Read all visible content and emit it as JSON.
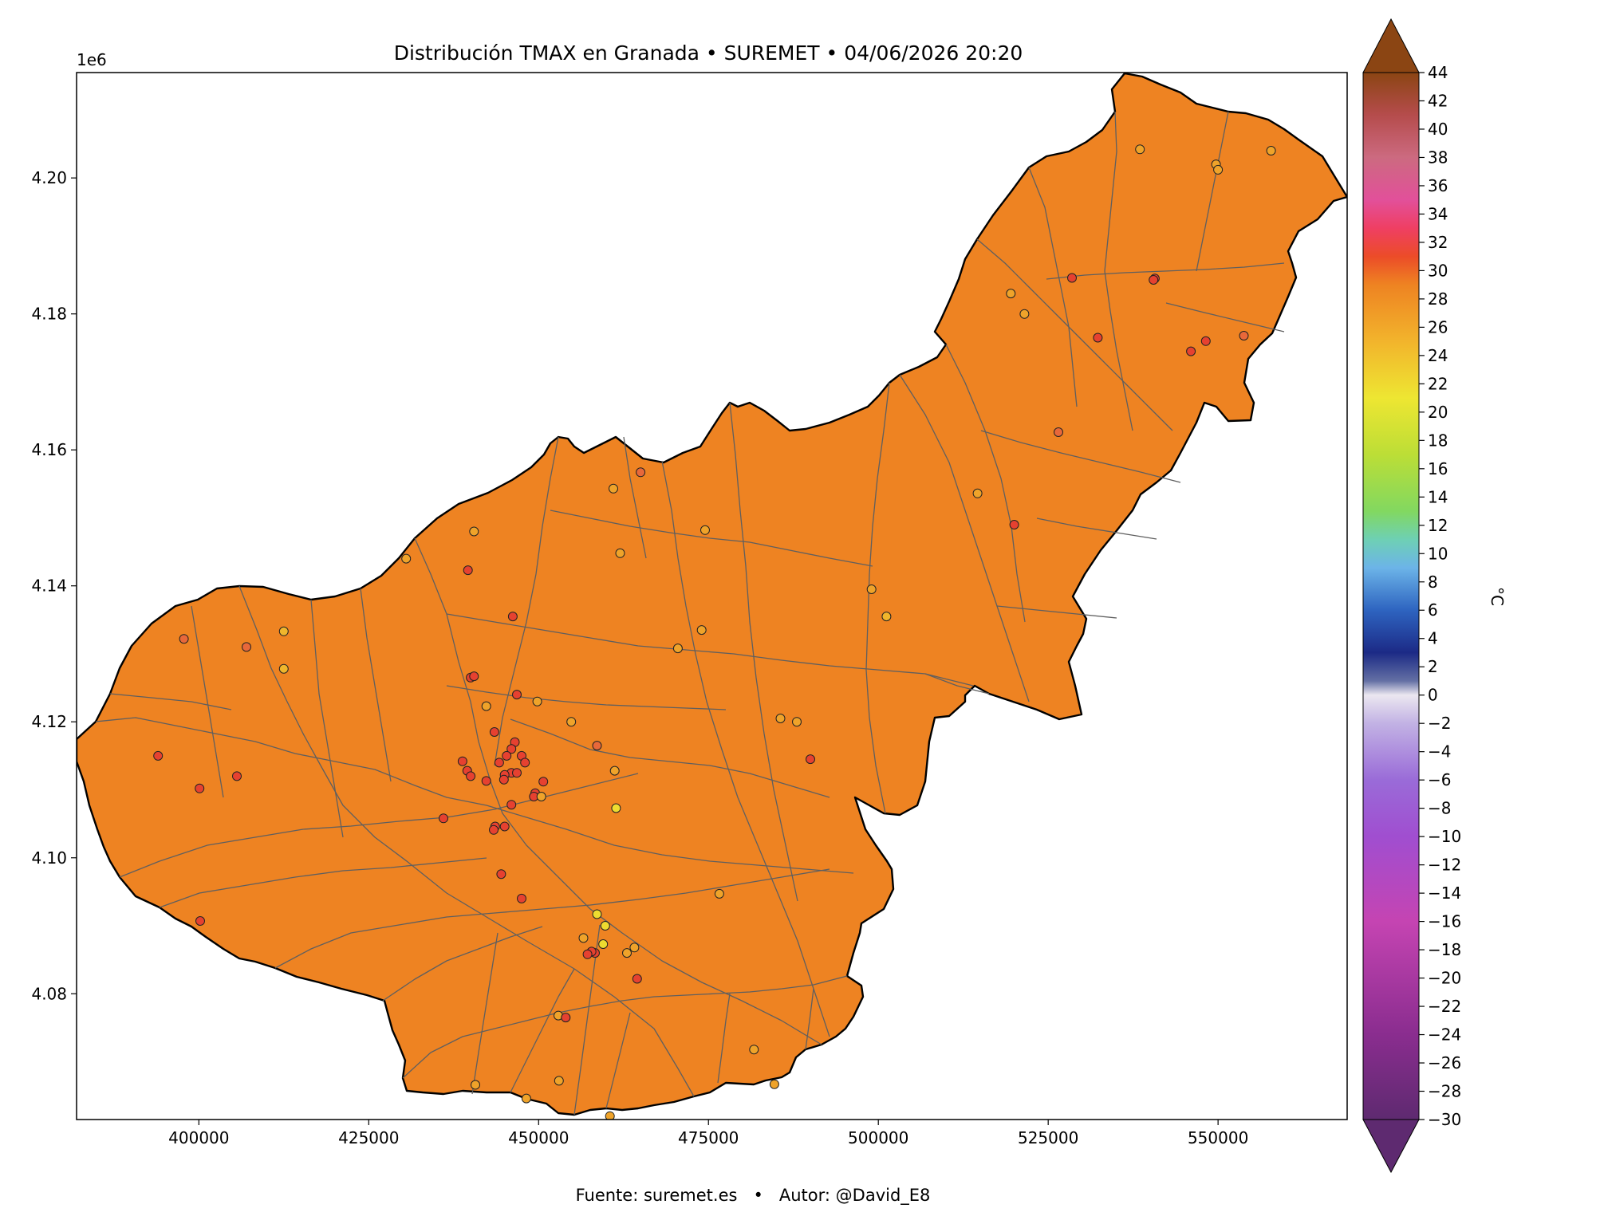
{
  "title": "Distribución TMAX en Granada • SUREMET • 04/06/2026 20:20",
  "footer": "Fuente: suremet.es   •   Autor: @David_E8",
  "chart_data": {
    "type": "map",
    "xlim": [
      382000,
      569000
    ],
    "ylim": [
      4061500,
      4215500
    ],
    "y_exponent_label": "1e6",
    "x_ticks": [
      {
        "value": 400000,
        "label": "400000"
      },
      {
        "value": 425000,
        "label": "425000"
      },
      {
        "value": 450000,
        "label": "450000"
      },
      {
        "value": 475000,
        "label": "475000"
      },
      {
        "value": 500000,
        "label": "500000"
      },
      {
        "value": 525000,
        "label": "525000"
      },
      {
        "value": 550000,
        "label": "550000"
      }
    ],
    "y_ticks": [
      {
        "value": 4080000,
        "label": "4.08"
      },
      {
        "value": 4100000,
        "label": "4.10"
      },
      {
        "value": 4120000,
        "label": "4.12"
      },
      {
        "value": 4140000,
        "label": "4.14"
      },
      {
        "value": 4160000,
        "label": "4.16"
      },
      {
        "value": 4180000,
        "label": "4.18"
      },
      {
        "value": 4200000,
        "label": "4.20"
      }
    ],
    "fill_color": "#ee8322",
    "colorbar": {
      "label": "°C",
      "min": -30,
      "max": 44,
      "step": 2,
      "extend": "both",
      "tick_labels": [
        "44",
        "42",
        "40",
        "38",
        "36",
        "34",
        "32",
        "30",
        "28",
        "26",
        "24",
        "22",
        "20",
        "18",
        "16",
        "14",
        "12",
        "10",
        "8",
        "6",
        "4",
        "2",
        "0",
        "−2",
        "−4",
        "−6",
        "−8",
        "−10",
        "−12",
        "−14",
        "−16",
        "−18",
        "−20",
        "−22",
        "−24",
        "−26",
        "−28",
        "−30"
      ],
      "stops": [
        {
          "t": -30,
          "c": "#5e2a70"
        },
        {
          "t": -24,
          "c": "#8a2d8f"
        },
        {
          "t": -16,
          "c": "#c544b2"
        },
        {
          "t": -10,
          "c": "#a04ed0"
        },
        {
          "t": -6,
          "c": "#9a6bd8"
        },
        {
          "t": -2,
          "c": "#c2b2e4"
        },
        {
          "t": 0,
          "c": "#ebe7f0"
        },
        {
          "t": 1,
          "c": "#6470a4"
        },
        {
          "t": 3,
          "c": "#1c2a86"
        },
        {
          "t": 6,
          "c": "#2e64c0"
        },
        {
          "t": 9,
          "c": "#6cb4e8"
        },
        {
          "t": 11,
          "c": "#6ed0b4"
        },
        {
          "t": 13,
          "c": "#82d860"
        },
        {
          "t": 17,
          "c": "#bcde36"
        },
        {
          "t": 21,
          "c": "#eee632"
        },
        {
          "t": 25,
          "c": "#f2b42c"
        },
        {
          "t": 29,
          "c": "#ee8322"
        },
        {
          "t": 31,
          "c": "#ec4c28"
        },
        {
          "t": 33,
          "c": "#ef3f63"
        },
        {
          "t": 35,
          "c": "#e2509a"
        },
        {
          "t": 38,
          "c": "#cc6a80"
        },
        {
          "t": 41,
          "c": "#b54c4c"
        },
        {
          "t": 44,
          "c": "#8b4513"
        }
      ],
      "under_color": "#5e2a70",
      "over_color": "#8b4513"
    },
    "stations": [
      {
        "x": 538500,
        "y": 4204200,
        "c": "#efa32a"
      },
      {
        "x": 549700,
        "y": 4202000,
        "c": "#efa32a"
      },
      {
        "x": 550000,
        "y": 4201200,
        "c": "#efa32a"
      },
      {
        "x": 557800,
        "y": 4204000,
        "c": "#efa32a"
      },
      {
        "x": 519500,
        "y": 4183000,
        "c": "#efa32a"
      },
      {
        "x": 521500,
        "y": 4180000,
        "c": "#efa32a"
      },
      {
        "x": 528500,
        "y": 4185300,
        "c": "#e64130"
      },
      {
        "x": 540700,
        "y": 4185200,
        "c": "#e64130"
      },
      {
        "x": 540500,
        "y": 4185000,
        "c": "#e64130"
      },
      {
        "x": 532300,
        "y": 4176500,
        "c": "#e64130"
      },
      {
        "x": 548200,
        "y": 4176000,
        "c": "#e64130"
      },
      {
        "x": 553800,
        "y": 4176800,
        "c": "#e8683a"
      },
      {
        "x": 546000,
        "y": 4174500,
        "c": "#e64130"
      },
      {
        "x": 526500,
        "y": 4162600,
        "c": "#e8683a"
      },
      {
        "x": 514600,
        "y": 4153600,
        "c": "#efa32a"
      },
      {
        "x": 520000,
        "y": 4149000,
        "c": "#e64130"
      },
      {
        "x": 499000,
        "y": 4139500,
        "c": "#efa32a"
      },
      {
        "x": 501200,
        "y": 4135500,
        "c": "#f0b62c"
      },
      {
        "x": 461000,
        "y": 4154300,
        "c": "#efa32a"
      },
      {
        "x": 465000,
        "y": 4156700,
        "c": "#e8683a"
      },
      {
        "x": 440500,
        "y": 4148000,
        "c": "#efa32a"
      },
      {
        "x": 474500,
        "y": 4148200,
        "c": "#efa32a"
      },
      {
        "x": 462000,
        "y": 4144800,
        "c": "#efa32a"
      },
      {
        "x": 430500,
        "y": 4144000,
        "c": "#efa32a"
      },
      {
        "x": 439600,
        "y": 4142300,
        "c": "#e64130"
      },
      {
        "x": 446200,
        "y": 4135500,
        "c": "#e64130"
      },
      {
        "x": 474000,
        "y": 4133500,
        "c": "#efa32a"
      },
      {
        "x": 470500,
        "y": 4130800,
        "c": "#efa32a"
      },
      {
        "x": 412500,
        "y": 4133300,
        "c": "#f0b62c"
      },
      {
        "x": 397800,
        "y": 4132200,
        "c": "#e8683a"
      },
      {
        "x": 407000,
        "y": 4131000,
        "c": "#e8683a"
      },
      {
        "x": 412500,
        "y": 4127800,
        "c": "#f0b62c"
      },
      {
        "x": 440000,
        "y": 4126500,
        "c": "#e64130"
      },
      {
        "x": 440500,
        "y": 4126700,
        "c": "#e64130"
      },
      {
        "x": 446800,
        "y": 4124000,
        "c": "#e64130"
      },
      {
        "x": 449800,
        "y": 4123000,
        "c": "#efa32a"
      },
      {
        "x": 442300,
        "y": 4122300,
        "c": "#efa32a"
      },
      {
        "x": 485600,
        "y": 4120500,
        "c": "#efa32a"
      },
      {
        "x": 488000,
        "y": 4120000,
        "c": "#efa32a"
      },
      {
        "x": 454800,
        "y": 4120000,
        "c": "#efa32a"
      },
      {
        "x": 443500,
        "y": 4118500,
        "c": "#e64130"
      },
      {
        "x": 458600,
        "y": 4116500,
        "c": "#e8683a"
      },
      {
        "x": 446500,
        "y": 4117000,
        "c": "#e64130"
      },
      {
        "x": 446000,
        "y": 4116000,
        "c": "#e64130"
      },
      {
        "x": 445300,
        "y": 4115000,
        "c": "#e64130"
      },
      {
        "x": 447500,
        "y": 4115000,
        "c": "#e64130"
      },
      {
        "x": 448000,
        "y": 4114000,
        "c": "#e64130"
      },
      {
        "x": 444200,
        "y": 4114000,
        "c": "#e64130"
      },
      {
        "x": 438800,
        "y": 4114200,
        "c": "#e64130"
      },
      {
        "x": 490000,
        "y": 4114500,
        "c": "#e64130"
      },
      {
        "x": 394000,
        "y": 4115000,
        "c": "#e64130"
      },
      {
        "x": 439500,
        "y": 4112800,
        "c": "#e64130"
      },
      {
        "x": 446000,
        "y": 4112500,
        "c": "#e64130"
      },
      {
        "x": 445000,
        "y": 4112200,
        "c": "#e64130"
      },
      {
        "x": 446800,
        "y": 4112500,
        "c": "#e64130"
      },
      {
        "x": 461200,
        "y": 4112800,
        "c": "#efa32a"
      },
      {
        "x": 440000,
        "y": 4112000,
        "c": "#e64130"
      },
      {
        "x": 405600,
        "y": 4112000,
        "c": "#e64130"
      },
      {
        "x": 444900,
        "y": 4111500,
        "c": "#e64130"
      },
      {
        "x": 442300,
        "y": 4111300,
        "c": "#e64130"
      },
      {
        "x": 450700,
        "y": 4111200,
        "c": "#e64130"
      },
      {
        "x": 400100,
        "y": 4110200,
        "c": "#e64130"
      },
      {
        "x": 449500,
        "y": 4109500,
        "c": "#e64130"
      },
      {
        "x": 449300,
        "y": 4109000,
        "c": "#e64130"
      },
      {
        "x": 450400,
        "y": 4109000,
        "c": "#efa32a"
      },
      {
        "x": 461400,
        "y": 4107300,
        "c": "#eedc30"
      },
      {
        "x": 446000,
        "y": 4107800,
        "c": "#e64130"
      },
      {
        "x": 436000,
        "y": 4105800,
        "c": "#e64130"
      },
      {
        "x": 443600,
        "y": 4104600,
        "c": "#e64130"
      },
      {
        "x": 445000,
        "y": 4104600,
        "c": "#e64130"
      },
      {
        "x": 443400,
        "y": 4104100,
        "c": "#e64130"
      },
      {
        "x": 444500,
        "y": 4097600,
        "c": "#e64130"
      },
      {
        "x": 476600,
        "y": 4094700,
        "c": "#efa32a"
      },
      {
        "x": 447500,
        "y": 4094000,
        "c": "#e64130"
      },
      {
        "x": 458600,
        "y": 4091700,
        "c": "#eedc30"
      },
      {
        "x": 459800,
        "y": 4090000,
        "c": "#eedc30"
      },
      {
        "x": 456600,
        "y": 4088200,
        "c": "#efa32a"
      },
      {
        "x": 459500,
        "y": 4087300,
        "c": "#eedc30"
      },
      {
        "x": 464100,
        "y": 4086800,
        "c": "#efa32a"
      },
      {
        "x": 463000,
        "y": 4086000,
        "c": "#efa32a"
      },
      {
        "x": 458300,
        "y": 4086000,
        "c": "#e64130"
      },
      {
        "x": 457800,
        "y": 4086200,
        "c": "#e64130"
      },
      {
        "x": 457200,
        "y": 4085800,
        "c": "#e64130"
      },
      {
        "x": 464500,
        "y": 4082200,
        "c": "#e64130"
      },
      {
        "x": 400200,
        "y": 4090700,
        "c": "#e64130"
      },
      {
        "x": 452900,
        "y": 4076800,
        "c": "#efa32a"
      },
      {
        "x": 454000,
        "y": 4076500,
        "c": "#e64130"
      },
      {
        "x": 481700,
        "y": 4071800,
        "c": "#efa32a"
      },
      {
        "x": 453000,
        "y": 4067200,
        "c": "#efa32a"
      },
      {
        "x": 460500,
        "y": 4062000,
        "c": "#efa32a"
      },
      {
        "x": 448200,
        "y": 4064600,
        "c": "#efa32a"
      },
      {
        "x": 484700,
        "y": 4066700,
        "c": "#efa32a"
      },
      {
        "x": 440700,
        "y": 4066600,
        "c": "#efa32a"
      }
    ]
  }
}
